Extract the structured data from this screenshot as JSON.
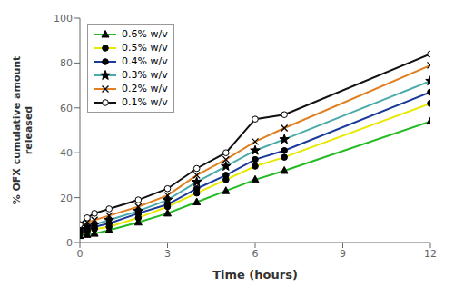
{
  "chart_data": {
    "type": "line",
    "x_label": "Time (hours)",
    "y_label": "% OFX cumulative amount\nreleased",
    "x": [
      0,
      0.25,
      0.5,
      1,
      2,
      3,
      4,
      5,
      6,
      7,
      12
    ],
    "series": [
      {
        "name": "0.6% w/v",
        "color": "#22bb22",
        "marker": "triangle",
        "values": [
          3,
          3.5,
          4,
          5.5,
          9,
          13,
          18,
          23,
          28,
          32,
          54
        ]
      },
      {
        "name": "0.5% w/v",
        "color": "#e8e800",
        "marker": "circle",
        "values": [
          4,
          5,
          6,
          7,
          11,
          16,
          22,
          28,
          34,
          38,
          62
        ]
      },
      {
        "name": "0.4% w/v",
        "color": "#1a3a9a",
        "marker": "circle",
        "values": [
          5,
          6,
          7,
          8.5,
          13,
          17,
          24,
          30,
          37,
          41,
          67
        ]
      },
      {
        "name": "0.3% w/v",
        "color": "#4aaaaa",
        "marker": "star",
        "values": [
          6,
          7,
          8,
          10,
          14,
          19,
          27,
          34,
          41,
          46,
          72
        ]
      },
      {
        "name": "0.2% w/v",
        "color": "#e08020",
        "marker": "x",
        "values": [
          7,
          9,
          10,
          12,
          16,
          21,
          30,
          37,
          45,
          51,
          79
        ]
      },
      {
        "name": "0.1% w/v",
        "color": "#111111",
        "marker": "open_circle",
        "values": [
          8,
          11,
          13,
          15,
          19,
          24,
          33,
          40,
          55,
          57,
          84
        ]
      }
    ],
    "xlim": [
      0,
      12
    ],
    "ylim": [
      0,
      100
    ],
    "xticks": [
      0,
      3,
      6,
      9,
      12
    ],
    "yticks": [
      0,
      20,
      40,
      60,
      80,
      100
    ],
    "grid": false,
    "legend": "upper left"
  }
}
